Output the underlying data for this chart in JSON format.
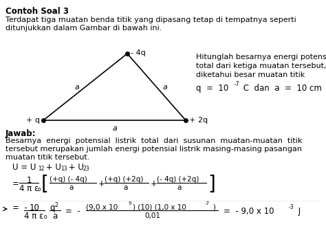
{
  "title": "Contoh Soal 3",
  "intro1": "Terdapat tiga muatan benda titik yang dipasang tetap di tempatnya seperti",
  "intro2": "ditunjukkan dalam Gambar di bawah ini.",
  "q1": "Hitunglah besarnya energi potensial listrik",
  "q2": "total dari ketiga muatan tersebut, jika",
  "q3": "diketahui besar muatan titik",
  "jawab_header": "Jawab:",
  "ans1": "Besarnya  energi  potensial  listrik  total  dari  susunan  muatan-muatan  titik",
  "ans2": "tersebut merupakan jumlah energi potensial listrik masing-masing pasangan",
  "ans3": "muatan titik tersebut.",
  "bg_color": "#ffffff",
  "text_color": "#000000"
}
